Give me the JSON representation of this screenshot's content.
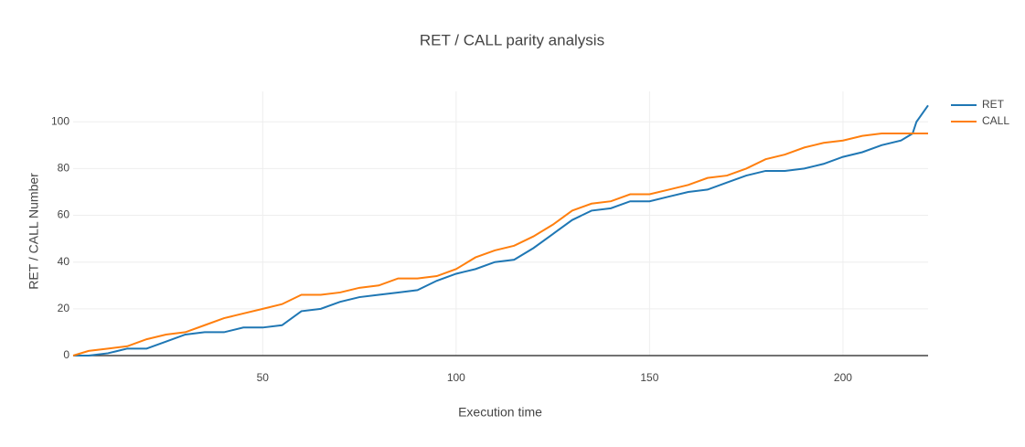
{
  "chart_data": {
    "type": "line",
    "title": "RET / CALL parity analysis",
    "x_label": "Execution time",
    "y_label": "RET / CALL Number",
    "x": [
      1,
      5,
      10,
      15,
      20,
      25,
      30,
      35,
      40,
      45,
      50,
      55,
      60,
      65,
      70,
      75,
      80,
      85,
      90,
      95,
      100,
      105,
      110,
      115,
      120,
      125,
      130,
      135,
      140,
      145,
      150,
      155,
      160,
      165,
      170,
      175,
      180,
      185,
      190,
      195,
      200,
      205,
      210,
      215,
      218,
      219,
      222
    ],
    "series": [
      {
        "name": "RET",
        "color": "#1f77b4",
        "values": [
          0,
          0,
          1,
          3,
          3,
          6,
          9,
          10,
          10,
          12,
          12,
          13,
          19,
          20,
          23,
          25,
          26,
          27,
          28,
          32,
          35,
          37,
          40,
          41,
          46,
          52,
          58,
          62,
          63,
          66,
          66,
          68,
          70,
          71,
          74,
          77,
          79,
          79,
          80,
          82,
          85,
          87,
          90,
          92,
          95,
          100,
          107
        ]
      },
      {
        "name": "CALL",
        "color": "#ff7f0e",
        "values": [
          0,
          2,
          3,
          4,
          7,
          9,
          10,
          13,
          16,
          18,
          20,
          22,
          26,
          26,
          27,
          29,
          30,
          33,
          33,
          34,
          37,
          42,
          45,
          47,
          51,
          56,
          62,
          65,
          66,
          69,
          69,
          71,
          73,
          76,
          77,
          80,
          84,
          86,
          89,
          91,
          92,
          94,
          95,
          95,
          95,
          95,
          95
        ]
      }
    ],
    "xlim": [
      1,
      222
    ],
    "ylim": [
      0,
      113
    ],
    "xticks": [
      50,
      100,
      150,
      200
    ],
    "yticks": [
      0,
      20,
      40,
      60,
      80,
      100
    ],
    "grid": true,
    "legend": "right"
  }
}
